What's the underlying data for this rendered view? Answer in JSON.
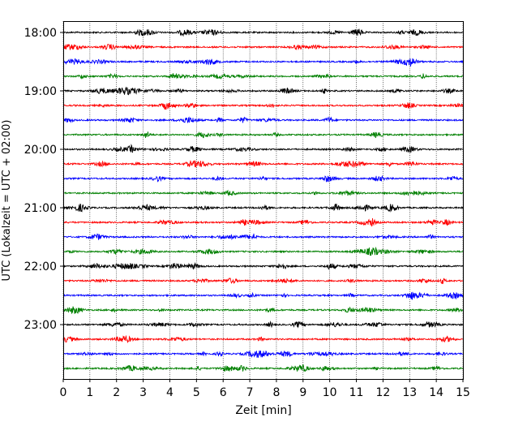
{
  "chart_data": {
    "type": "line",
    "title": "",
    "xlabel": "Zeit  [min]",
    "ylabel": "UTC (Lokalzeit = UTC + 02:00)",
    "xlim": [
      0,
      15
    ],
    "x_ticks": [
      "0",
      "1",
      "2",
      "3",
      "4",
      "5",
      "6",
      "7",
      "8",
      "9",
      "10",
      "11",
      "12",
      "13",
      "14",
      "15"
    ],
    "y_ticks": [
      "18:00",
      "19:00",
      "20:00",
      "21:00",
      "22:00",
      "23:00"
    ],
    "grid_x": true,
    "grid_y": false,
    "trace_interval_min": 15,
    "traces_start": "18:00",
    "trace_count": 24,
    "trace_colors": [
      "#000000",
      "#ff0000",
      "#0000ff",
      "#008000"
    ]
  }
}
